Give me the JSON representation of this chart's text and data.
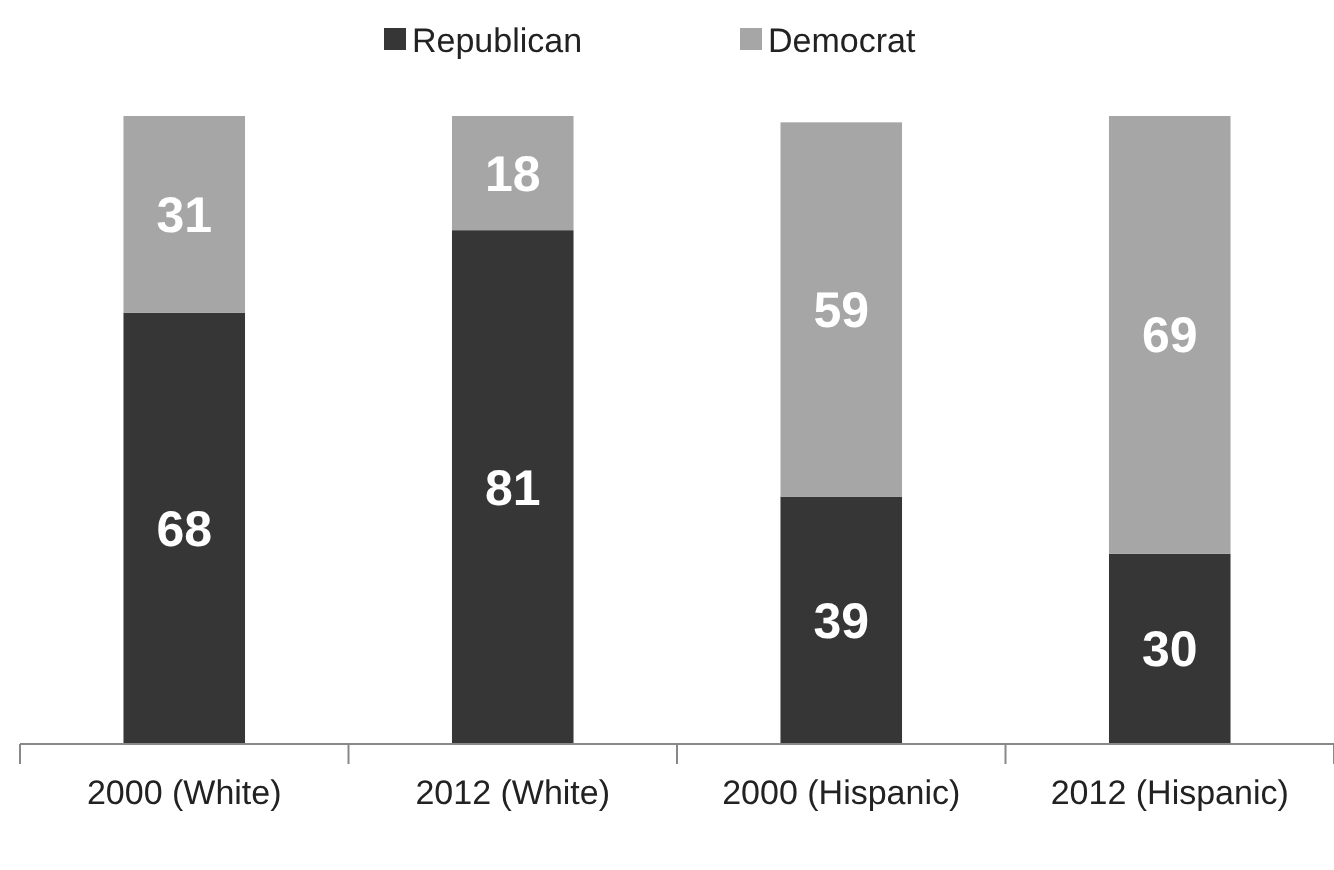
{
  "chart_data": {
    "type": "bar",
    "stacked": true,
    "categories": [
      "2000 (White)",
      "2012 (White)",
      "2000 (Hispanic)",
      "2012 (Hispanic)"
    ],
    "series": [
      {
        "name": "Republican",
        "color": "#363636",
        "values": [
          68,
          81,
          39,
          30
        ]
      },
      {
        "name": "Democrat",
        "color": "#a6a6a6",
        "values": [
          31,
          18,
          59,
          69
        ]
      }
    ],
    "data_labels": true,
    "legend": "top"
  }
}
